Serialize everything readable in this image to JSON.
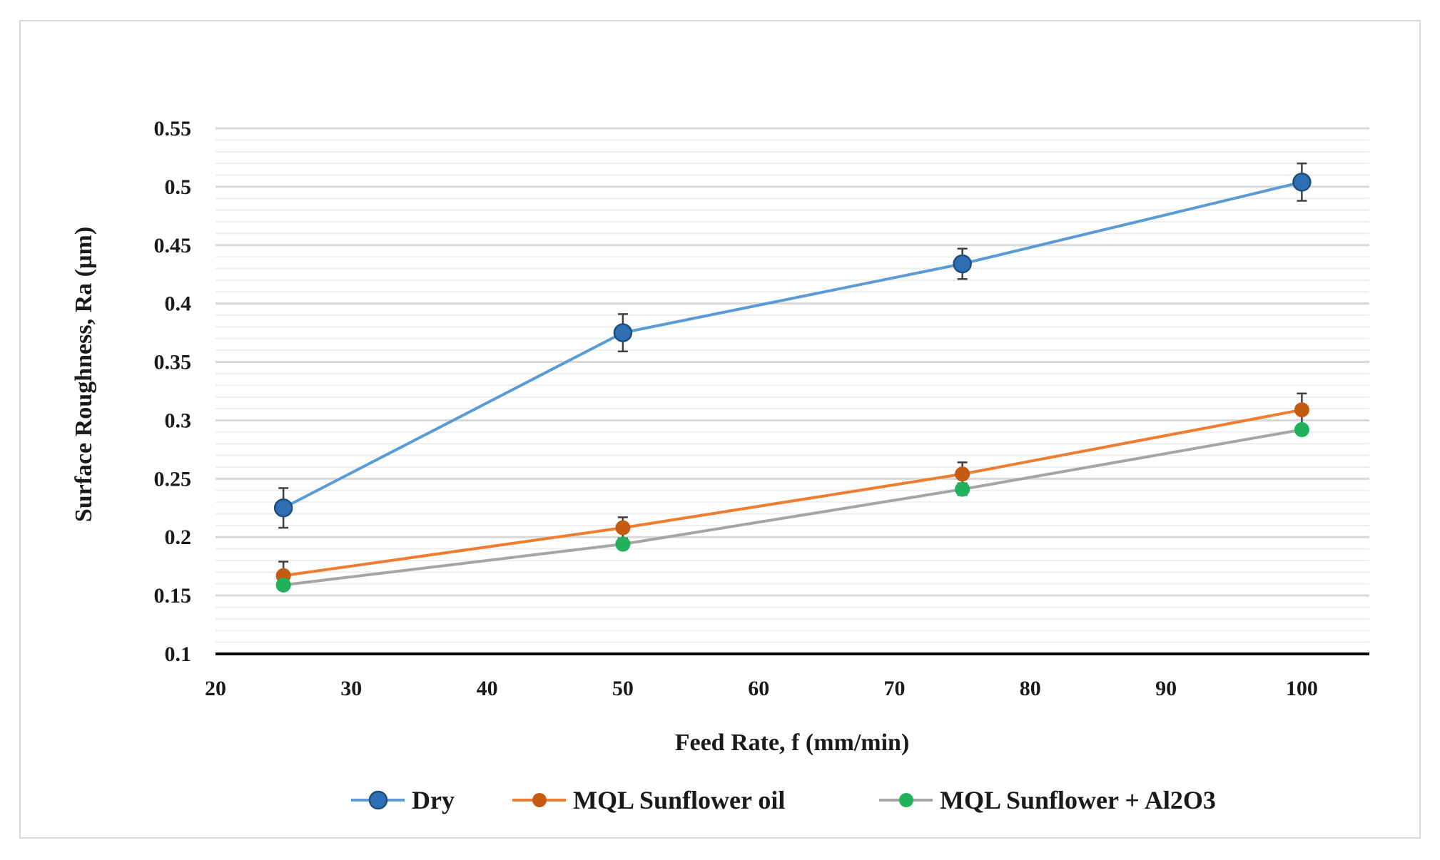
{
  "chart_data": {
    "type": "line",
    "title": "",
    "xlabel": "Feed Rate, f (mm/min)",
    "ylabel": "Surface Roughness, Ra (µm)",
    "xlim": [
      20,
      105
    ],
    "ylim": [
      0.1,
      0.55
    ],
    "x_ticks": [
      20,
      30,
      40,
      50,
      60,
      70,
      80,
      90,
      100
    ],
    "y_ticks": [
      0.1,
      0.15,
      0.2,
      0.25,
      0.3,
      0.35,
      0.4,
      0.45,
      0.5,
      0.55
    ],
    "y_tick_labels": [
      "0.1",
      "0.15",
      "0.2",
      "0.25",
      "0.3",
      "0.35",
      "0.4",
      "0.45",
      "0.5",
      "0.55"
    ],
    "x_tick_labels": [
      "20",
      "30",
      "40",
      "50",
      "60",
      "70",
      "80",
      "90",
      "100"
    ],
    "grid": true,
    "legend_position": "bottom",
    "x": [
      25,
      50,
      75,
      100
    ],
    "series": [
      {
        "name": "Dry",
        "values": [
          0.225,
          0.375,
          0.434,
          0.504
        ],
        "error": [
          0.017,
          0.016,
          0.013,
          0.016
        ],
        "line_color": "#5b9bd5",
        "marker_color": "#2e6eb5"
      },
      {
        "name": "MQL Sunflower oil",
        "values": [
          0.167,
          0.208,
          0.254,
          0.309
        ],
        "error": [
          0.012,
          0.009,
          0.01,
          0.014
        ],
        "line_color": "#ed7d31",
        "marker_color": "#c55a11"
      },
      {
        "name": "MQL Sunflower + Al2O3",
        "values": [
          0.159,
          0.194,
          0.241,
          0.292
        ],
        "error": [
          0.004,
          0.004,
          0.005,
          0.004
        ],
        "line_color": "#a5a5a5",
        "marker_color": "#1fb25a"
      }
    ]
  }
}
